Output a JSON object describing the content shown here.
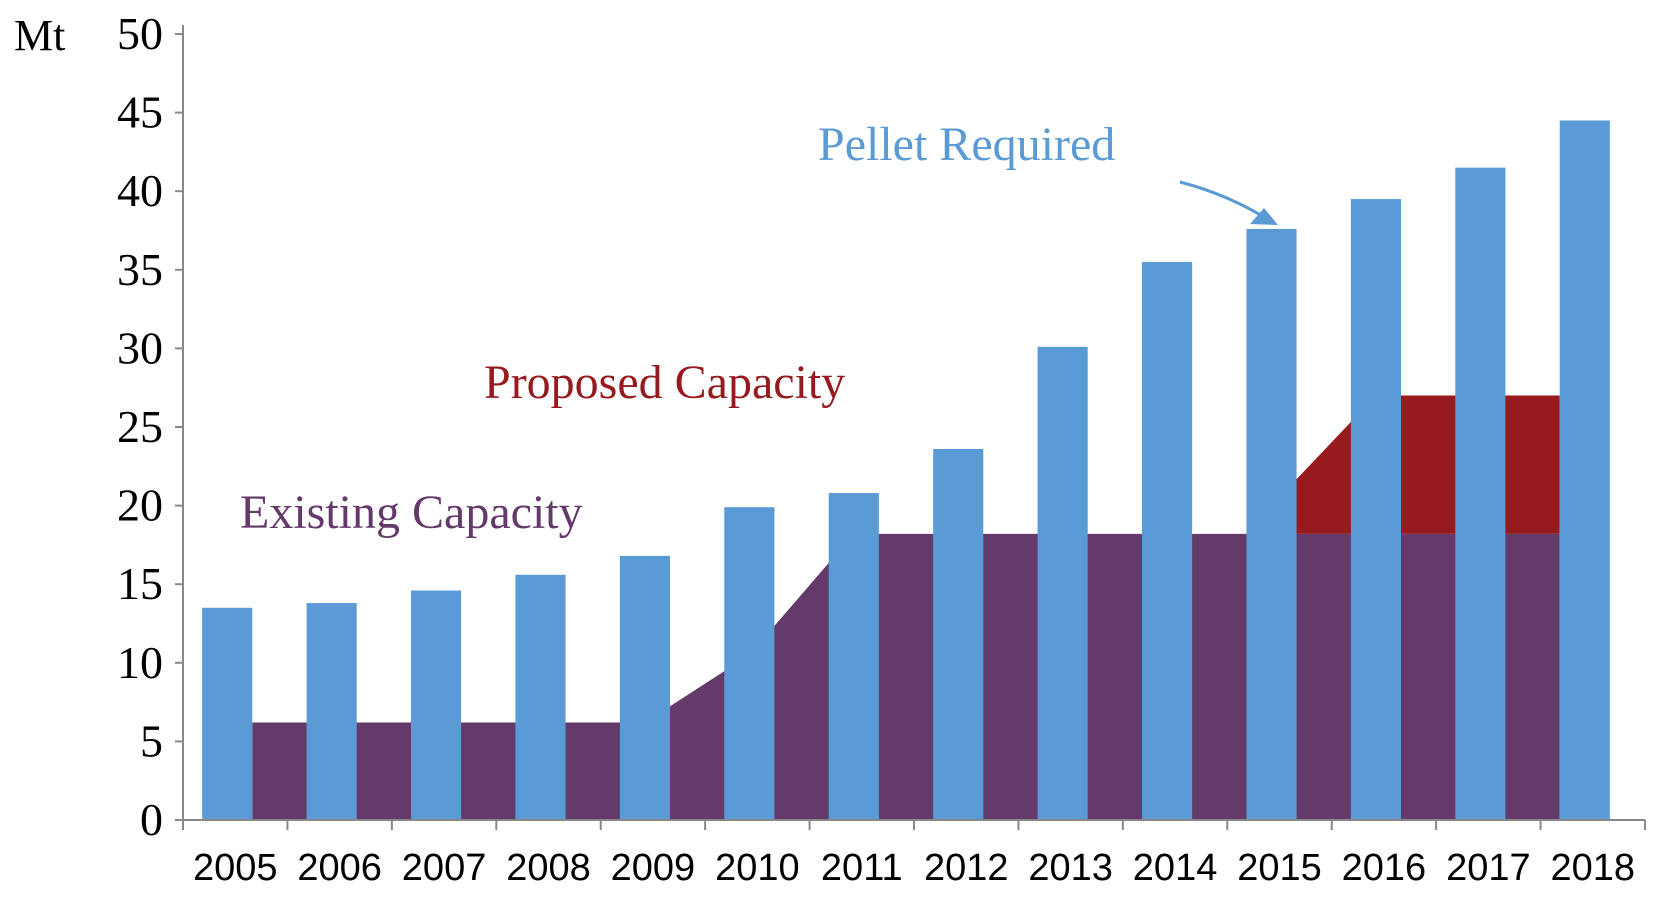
{
  "chart_data": {
    "type": "bar",
    "y_unit": "Mt",
    "ylim": [
      0,
      50
    ],
    "y_ticks": [
      0,
      5,
      10,
      15,
      20,
      25,
      30,
      35,
      40,
      45,
      50
    ],
    "categories": [
      "2005",
      "2006",
      "2007",
      "2008",
      "2009",
      "2010",
      "2011",
      "2012",
      "2013",
      "2014",
      "2015",
      "2016",
      "2017",
      "2018"
    ],
    "series": [
      {
        "name": "Pellet Required",
        "type": "bar",
        "values": [
          13.5,
          13.8,
          14.6,
          15.6,
          16.8,
          19.9,
          20.8,
          23.6,
          30.1,
          35.5,
          37.6,
          39.5,
          41.5,
          44.5
        ]
      },
      {
        "name": "Existing Capacity",
        "type": "area",
        "values": [
          6.2,
          6.2,
          6.2,
          6.2,
          6.2,
          10.5,
          18.2,
          18.2,
          18.2,
          18.2,
          18.2,
          18.2,
          18.2,
          18.2
        ]
      },
      {
        "name": "Proposed Capacity",
        "type": "area",
        "values": [
          null,
          null,
          null,
          null,
          null,
          null,
          null,
          null,
          null,
          null,
          20.0,
          27.0,
          27.0,
          null
        ]
      }
    ],
    "grid": false,
    "colors": {
      "pellet": "#5b9bd5",
      "existing": "#633a69",
      "proposed": "#961a1e",
      "axis": "#888888"
    }
  },
  "annotations": {
    "pellet_required": "Pellet Required",
    "proposed_capacity": "Proposed Capacity",
    "existing_capacity": "Existing Capacity"
  }
}
